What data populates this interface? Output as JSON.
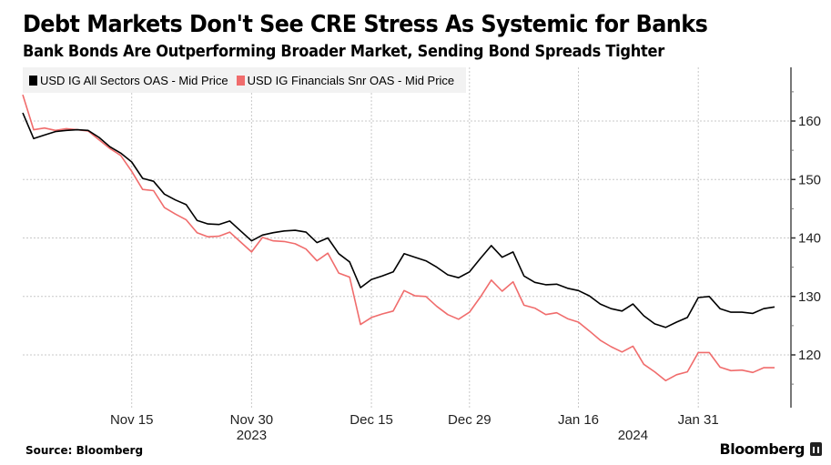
{
  "chart_data": {
    "type": "line",
    "title": "Debt Markets Don't See CRE Stress As Systemic for Banks",
    "subtitle": "Bank Bonds Are Outperforming Broader Market, Sending Bond Spreads Tighter",
    "xlabel": "",
    "ylabel": "",
    "ylim": [
      111,
      169
    ],
    "y_ticks": [
      120,
      130,
      140,
      150,
      160
    ],
    "y_minor_ticks": [
      115,
      125,
      135,
      145,
      155,
      165
    ],
    "y_axis_side": "right",
    "grid": true,
    "legend_placement": "top-left",
    "x_tick_labels": [
      "Nov 15",
      "Nov 30",
      "Dec 15",
      "Dec 29",
      "Jan 16",
      "Jan 31"
    ],
    "x_tick_index": [
      10,
      21,
      32,
      41,
      51,
      62
    ],
    "x_year_labels": [
      {
        "label": "2023",
        "index": 21
      },
      {
        "label": "2024",
        "index": 56
      }
    ],
    "n_points": 70,
    "series": [
      {
        "name": "USD IG All Sectors OAS - Mid Price",
        "color": "#000000",
        "values": [
          161.4,
          157.0,
          157.6,
          158.2,
          158.4,
          158.5,
          158.4,
          157.2,
          155.6,
          154.5,
          153.0,
          150.2,
          149.7,
          147.5,
          146.5,
          145.7,
          143.0,
          142.4,
          142.3,
          142.9,
          141.2,
          139.5,
          140.5,
          140.9,
          141.2,
          141.3,
          141.0,
          139.2,
          140.0,
          137.3,
          135.9,
          131.5,
          132.9,
          133.5,
          134.2,
          137.3,
          136.7,
          136.1,
          135.0,
          133.7,
          133.2,
          134.2,
          136.5,
          138.7,
          136.7,
          137.6,
          133.5,
          132.4,
          132.0,
          132.1,
          131.4,
          131.0,
          130.1,
          128.7,
          127.9,
          127.5,
          128.7,
          126.7,
          125.3,
          124.7,
          125.6,
          126.4,
          129.8,
          130.0,
          127.9,
          127.3,
          127.3,
          127.1,
          127.9,
          128.2
        ]
      },
      {
        "name": "USD IG Financials Snr OAS - Mid Price",
        "color": "#f06c6c",
        "values": [
          164.5,
          158.5,
          158.8,
          158.4,
          158.7,
          158.5,
          158.3,
          156.8,
          155.3,
          154.1,
          151.4,
          148.3,
          148.1,
          145.2,
          144.1,
          143.1,
          140.9,
          140.2,
          140.3,
          141.0,
          139.3,
          137.6,
          140.1,
          139.5,
          139.4,
          139.0,
          138.1,
          136.1,
          137.4,
          134.0,
          133.3,
          125.2,
          126.4,
          127.0,
          127.5,
          131.0,
          130.1,
          130.0,
          128.3,
          126.9,
          126.1,
          127.3,
          129.9,
          132.8,
          130.9,
          132.5,
          128.5,
          128.0,
          126.9,
          127.2,
          126.2,
          125.6,
          124.1,
          122.5,
          121.4,
          120.5,
          121.5,
          118.4,
          117.1,
          115.6,
          116.6,
          117.1,
          120.4,
          120.4,
          117.9,
          117.3,
          117.4,
          117.0,
          117.8,
          117.8
        ]
      }
    ]
  },
  "source_label": "Source: Bloomberg",
  "brand_label": "Bloomberg",
  "brand_icon": "bloomberg-chart-icon"
}
